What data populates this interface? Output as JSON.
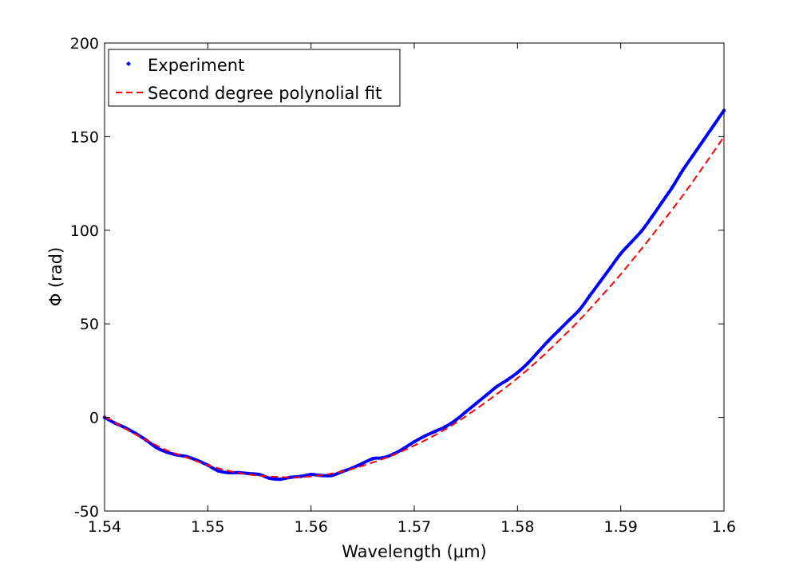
{
  "chart_data": {
    "type": "line",
    "xlabel": "Wavelength (μm)",
    "ylabel": "Φ (rad)",
    "xlim": [
      1.54,
      1.6
    ],
    "ylim": [
      -50,
      200
    ],
    "xticks": [
      1.54,
      1.55,
      1.56,
      1.57,
      1.58,
      1.59,
      1.6
    ],
    "xtick_labels": [
      "1.54",
      "1.55",
      "1.56",
      "1.57",
      "1.58",
      "1.59",
      "1.6"
    ],
    "yticks": [
      -50,
      0,
      50,
      100,
      150,
      200
    ],
    "ytick_labels": [
      "-50",
      "0",
      "50",
      "100",
      "150",
      "200"
    ],
    "grid": false,
    "legend_position": "top-left",
    "series": [
      {
        "name": "Experiment",
        "style": "points",
        "color": "#0000ff",
        "x": [
          1.54,
          1.541,
          1.542,
          1.543,
          1.544,
          1.545,
          1.546,
          1.547,
          1.548,
          1.549,
          1.55,
          1.551,
          1.552,
          1.553,
          1.554,
          1.555,
          1.556,
          1.557,
          1.558,
          1.559,
          1.56,
          1.561,
          1.562,
          1.563,
          1.564,
          1.565,
          1.566,
          1.567,
          1.568,
          1.569,
          1.57,
          1.571,
          1.572,
          1.573,
          1.574,
          1.575,
          1.576,
          1.577,
          1.578,
          1.579,
          1.58,
          1.581,
          1.582,
          1.583,
          1.584,
          1.585,
          1.586,
          1.587,
          1.588,
          1.589,
          1.59,
          1.591,
          1.592,
          1.593,
          1.594,
          1.595,
          1.596,
          1.597,
          1.598,
          1.599,
          1.6
        ],
        "y": [
          0,
          -3,
          -5.5,
          -8.5,
          -12,
          -16,
          -18.5,
          -20,
          -21,
          -23,
          -25.5,
          -28.5,
          -29.5,
          -29.5,
          -30,
          -30.5,
          -32.5,
          -33,
          -32,
          -31.5,
          -30.5,
          -31,
          -31,
          -29,
          -27,
          -24.5,
          -22,
          -21.5,
          -19.5,
          -16.5,
          -13,
          -10,
          -7.5,
          -5,
          -1.5,
          3,
          7.5,
          12,
          16.5,
          20,
          24,
          29,
          35,
          41,
          46.5,
          52,
          57.5,
          65,
          72.5,
          80,
          87.5,
          93.5,
          99.5,
          107,
          115,
          123,
          132,
          140,
          148,
          156,
          164
        ]
      },
      {
        "name": "Second degree polynolial fit",
        "style": "dashed",
        "color": "#ff0000",
        "x": [
          1.54,
          1.542,
          1.544,
          1.546,
          1.548,
          1.55,
          1.552,
          1.554,
          1.556,
          1.558,
          1.56,
          1.562,
          1.564,
          1.566,
          1.568,
          1.57,
          1.572,
          1.574,
          1.576,
          1.578,
          1.58,
          1.582,
          1.584,
          1.586,
          1.588,
          1.59,
          1.592,
          1.594,
          1.596,
          1.598,
          1.6
        ],
        "y": [
          0.5,
          -6,
          -12,
          -17.5,
          -21.5,
          -25.5,
          -28.5,
          -30.5,
          -31.5,
          -32,
          -31.5,
          -30,
          -27.5,
          -24,
          -20,
          -15,
          -9.5,
          -3,
          4.5,
          12.5,
          21,
          30.5,
          41,
          52,
          64,
          76.5,
          90,
          104,
          118.5,
          134,
          150
        ]
      }
    ]
  }
}
